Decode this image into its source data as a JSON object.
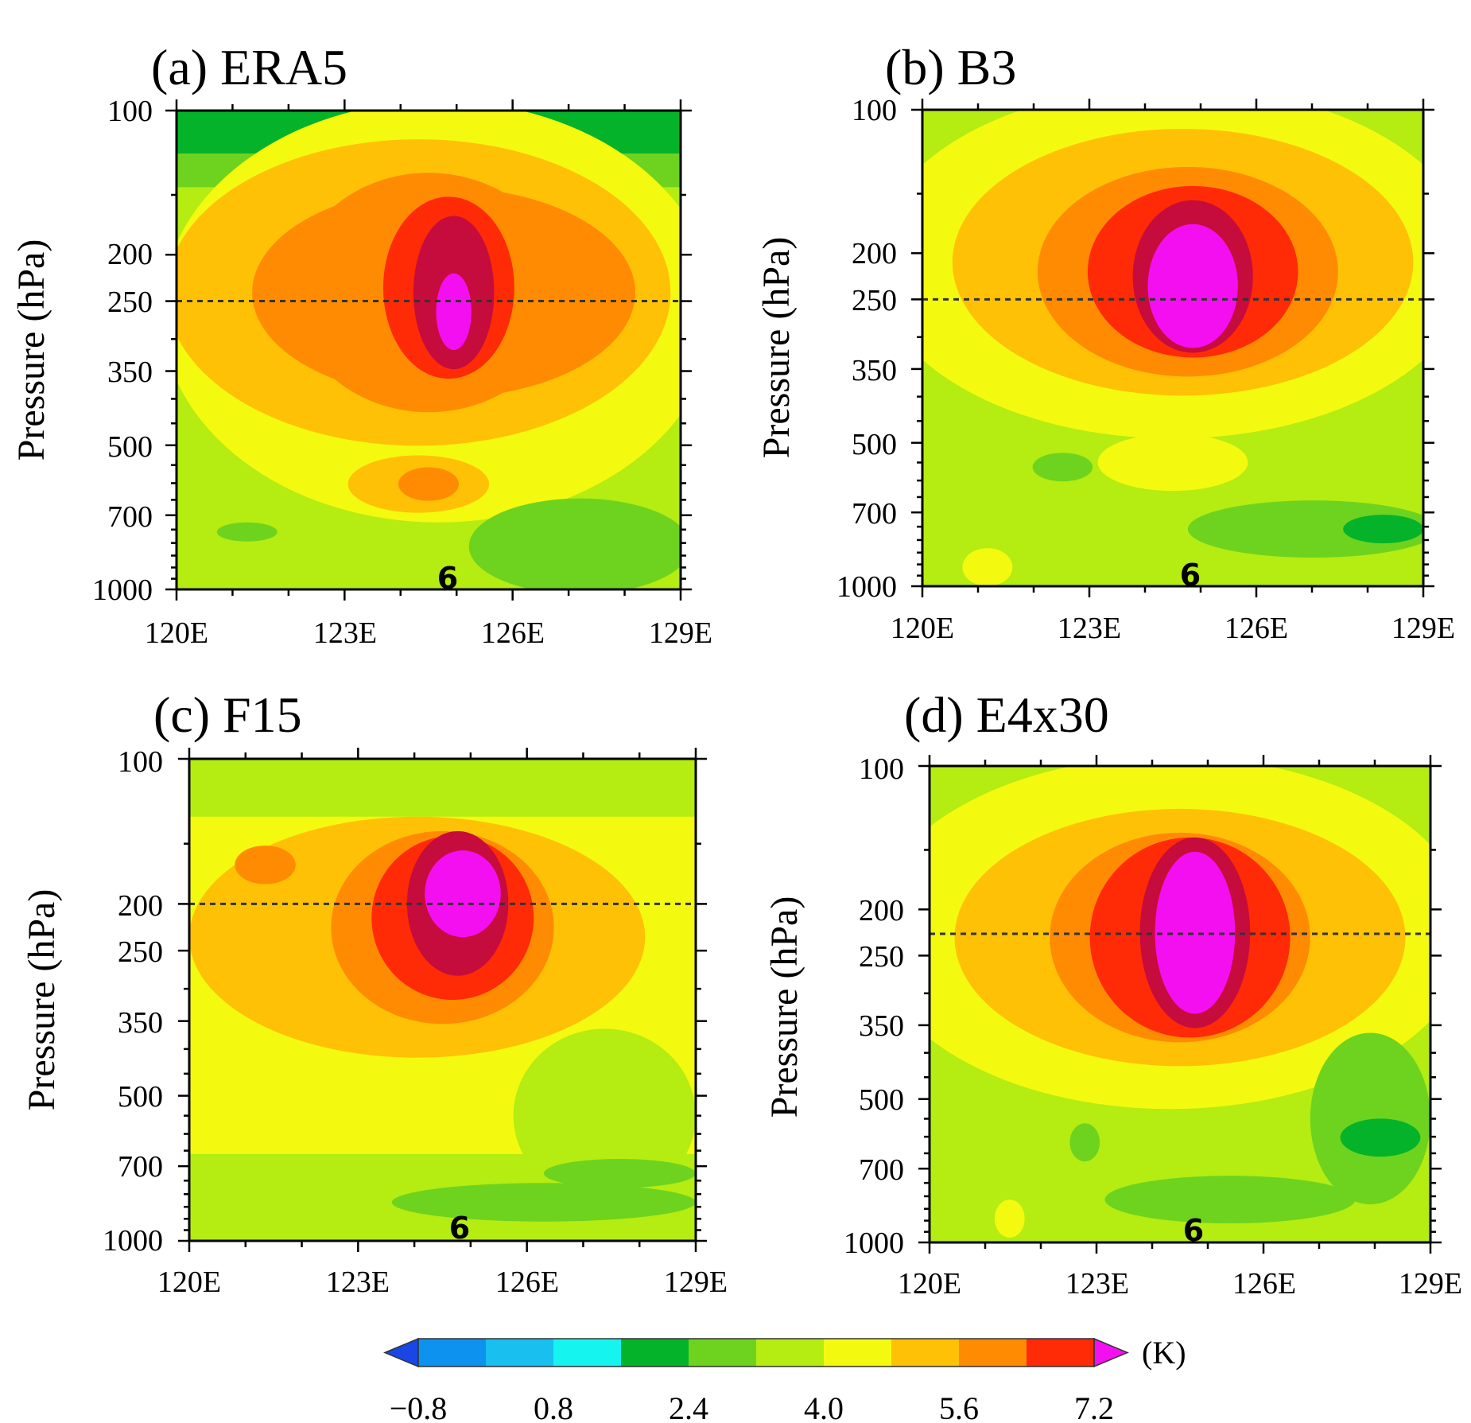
{
  "colors": {
    "palette": [
      "#1a46e6",
      "#0d92f0",
      "#19c0ef",
      "#16f4f0",
      "#05b32a",
      "#6ed31f",
      "#b5ec12",
      "#f4f910",
      "#ffc106",
      "#ff8b02",
      "#ff2a06",
      "#c50c3c",
      "#f40ff0"
    ],
    "level_note": "contour interval 0.8 K"
  },
  "colorbar": {
    "unit_label": "(K)",
    "tick_labels": [
      "−0.8",
      "0.8",
      "2.4",
      "4.0",
      "5.6",
      "7.2"
    ],
    "levels": [
      -0.8,
      0,
      0.8,
      1.6,
      2.4,
      3.2,
      4.0,
      4.8,
      5.6,
      6.4,
      7.2
    ]
  },
  "chart_data": [
    {
      "type": "heatmap",
      "title": "(a) ERA5",
      "ylabel": "Pressure (hPa)",
      "x_ticks": [
        "120E",
        "123E",
        "126E",
        "129E"
      ],
      "y_ticks": [
        "100",
        "200",
        "250",
        "350",
        "500",
        "700",
        "1000"
      ],
      "xlim": [
        120,
        129
      ],
      "ylim": [
        1000,
        100
      ],
      "y_scale": "log",
      "marker_label": "6",
      "marker_lon": 124.8,
      "dashed_level_hPa": 250,
      "warm_core": {
        "center_lon": 124.8,
        "center_hPa": 270,
        "max_K": 7.4
      }
    },
    {
      "type": "heatmap",
      "title": "(b) B3",
      "ylabel": "Pressure (hPa)",
      "x_ticks": [
        "120E",
        "123E",
        "126E",
        "129E"
      ],
      "y_ticks": [
        "100",
        "200",
        "250",
        "350",
        "500",
        "700",
        "1000"
      ],
      "xlim": [
        120,
        129
      ],
      "ylim": [
        1000,
        100
      ],
      "y_scale": "log",
      "marker_label": "6",
      "marker_lon": 124.8,
      "dashed_level_hPa": 250,
      "warm_core": {
        "center_lon": 124.9,
        "center_hPa": 250,
        "max_K": 7.8
      }
    },
    {
      "type": "heatmap",
      "title": "(c) F15",
      "ylabel": "Pressure (hPa)",
      "x_ticks": [
        "120E",
        "123E",
        "126E",
        "129E"
      ],
      "y_ticks": [
        "100",
        "200",
        "250",
        "350",
        "500",
        "700",
        "1000"
      ],
      "xlim": [
        120,
        129
      ],
      "ylim": [
        1000,
        100
      ],
      "y_scale": "log",
      "marker_label": "6",
      "marker_lon": 124.8,
      "dashed_level_hPa": 200,
      "warm_core": {
        "center_lon": 125.0,
        "center_hPa": 205,
        "max_K": 7.4
      }
    },
    {
      "type": "heatmap",
      "title": "(d) E4x30",
      "ylabel": "Pressure (hPa)",
      "x_ticks": [
        "120E",
        "123E",
        "126E",
        "129E"
      ],
      "y_ticks": [
        "100",
        "200",
        "250",
        "350",
        "500",
        "700",
        "1000"
      ],
      "xlim": [
        120,
        129
      ],
      "ylim": [
        1000,
        100
      ],
      "y_scale": "log",
      "marker_label": "6",
      "marker_lon": 124.8,
      "dashed_level_hPa": 225,
      "warm_core": {
        "center_lon": 124.9,
        "center_hPa": 230,
        "max_K": 7.8
      }
    }
  ]
}
